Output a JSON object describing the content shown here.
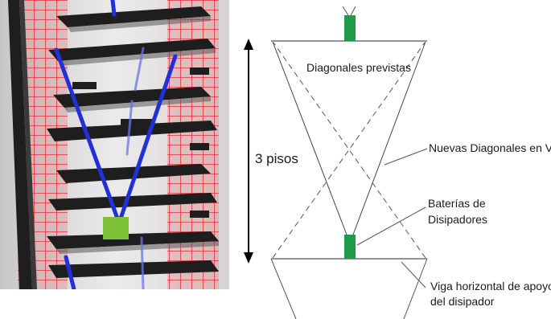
{
  "labels": {
    "diagonales_previstas": "Diagonales previstas",
    "tres_pisos": "3 pisos",
    "nuevas_diagonales": "Nuevas Diagonales en V",
    "baterias_line1": "Baterías de",
    "baterias_line2": "Disipadores",
    "viga_line1": "Viga horizontal de apoyo",
    "viga_line2": "del disipador"
  },
  "colors": {
    "dissipator": "#1e9a4a",
    "render_dissipator": "#7cc035",
    "brace_blue": "#2230d8",
    "frame_red": "#e0303a",
    "beam_dark": "#1e1e1e",
    "line": "#333333"
  }
}
